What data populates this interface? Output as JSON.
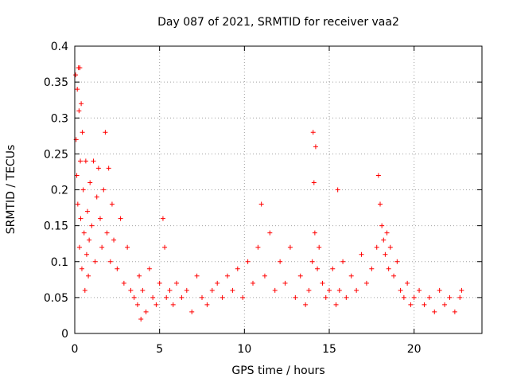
{
  "chart_data": {
    "type": "scatter",
    "title": "Day 087 of 2021, SRMTID for receiver vaa2",
    "xlabel": "GPS time / hours",
    "ylabel": "SRMTID / TECUs",
    "xlim": [
      0,
      24
    ],
    "ylim": [
      0,
      0.4
    ],
    "xticks": [
      0,
      5,
      10,
      15,
      20
    ],
    "xtick_labels": [
      "0",
      "5",
      "10",
      "15",
      "20"
    ],
    "yticks": [
      0,
      0.05,
      0.1,
      0.15,
      0.2,
      0.25,
      0.3,
      0.35,
      0.4
    ],
    "ytick_labels": [
      "0",
      "0.05",
      "0.1",
      "0.15",
      "0.2",
      "0.25",
      "0.3",
      "0.35",
      "0.4"
    ],
    "grid": true,
    "marker": "+",
    "color": "#ff0000",
    "series": [
      {
        "name": "SRMTID",
        "x": [
          0.05,
          0.08,
          0.12,
          0.15,
          0.18,
          0.22,
          0.25,
          0.28,
          0.3,
          0.33,
          0.35,
          0.38,
          0.42,
          0.45,
          0.5,
          0.55,
          0.6,
          0.65,
          0.7,
          0.75,
          0.8,
          0.85,
          0.9,
          1.0,
          1.1,
          1.2,
          1.3,
          1.4,
          1.5,
          1.6,
          1.7,
          1.8,
          1.9,
          2.0,
          2.1,
          2.2,
          2.3,
          2.5,
          2.7,
          2.9,
          3.1,
          3.3,
          3.5,
          3.7,
          3.8,
          3.9,
          4.0,
          4.2,
          4.4,
          4.6,
          4.8,
          5.0,
          5.2,
          5.3,
          5.4,
          5.6,
          5.8,
          6.0,
          6.3,
          6.6,
          6.9,
          7.2,
          7.5,
          7.8,
          8.1,
          8.4,
          8.7,
          9.0,
          9.3,
          9.6,
          9.9,
          10.2,
          10.5,
          10.8,
          11.0,
          11.2,
          11.5,
          11.8,
          12.1,
          12.4,
          12.7,
          13.0,
          13.3,
          13.6,
          13.8,
          14.0,
          14.05,
          14.1,
          14.15,
          14.2,
          14.3,
          14.4,
          14.6,
          14.8,
          15.0,
          15.2,
          15.4,
          15.5,
          15.6,
          15.8,
          16.0,
          16.3,
          16.6,
          16.9,
          17.2,
          17.5,
          17.8,
          17.9,
          18.0,
          18.1,
          18.2,
          18.3,
          18.4,
          18.5,
          18.6,
          18.8,
          19.0,
          19.2,
          19.4,
          19.6,
          19.8,
          20.0,
          20.3,
          20.6,
          20.9,
          21.2,
          21.5,
          21.8,
          22.1,
          22.4,
          22.7,
          22.8
        ],
        "y": [
          0.36,
          0.27,
          0.22,
          0.34,
          0.18,
          0.37,
          0.31,
          0.12,
          0.37,
          0.24,
          0.16,
          0.32,
          0.09,
          0.28,
          0.2,
          0.14,
          0.06,
          0.24,
          0.11,
          0.17,
          0.08,
          0.13,
          0.21,
          0.15,
          0.24,
          0.1,
          0.19,
          0.23,
          0.16,
          0.12,
          0.2,
          0.28,
          0.14,
          0.23,
          0.1,
          0.18,
          0.13,
          0.09,
          0.16,
          0.07,
          0.12,
          0.06,
          0.05,
          0.04,
          0.08,
          0.02,
          0.06,
          0.03,
          0.09,
          0.05,
          0.04,
          0.07,
          0.16,
          0.12,
          0.05,
          0.06,
          0.04,
          0.07,
          0.05,
          0.06,
          0.03,
          0.08,
          0.05,
          0.04,
          0.06,
          0.07,
          0.05,
          0.08,
          0.06,
          0.09,
          0.05,
          0.1,
          0.07,
          0.12,
          0.18,
          0.08,
          0.14,
          0.06,
          0.1,
          0.07,
          0.12,
          0.05,
          0.08,
          0.04,
          0.06,
          0.1,
          0.28,
          0.21,
          0.14,
          0.26,
          0.09,
          0.12,
          0.07,
          0.05,
          0.06,
          0.09,
          0.04,
          0.2,
          0.06,
          0.1,
          0.05,
          0.08,
          0.06,
          0.11,
          0.07,
          0.09,
          0.12,
          0.22,
          0.18,
          0.15,
          0.13,
          0.11,
          0.14,
          0.09,
          0.12,
          0.08,
          0.1,
          0.06,
          0.05,
          0.07,
          0.04,
          0.05,
          0.06,
          0.04,
          0.05,
          0.03,
          0.06,
          0.04,
          0.05,
          0.03,
          0.05,
          0.06
        ]
      }
    ]
  }
}
